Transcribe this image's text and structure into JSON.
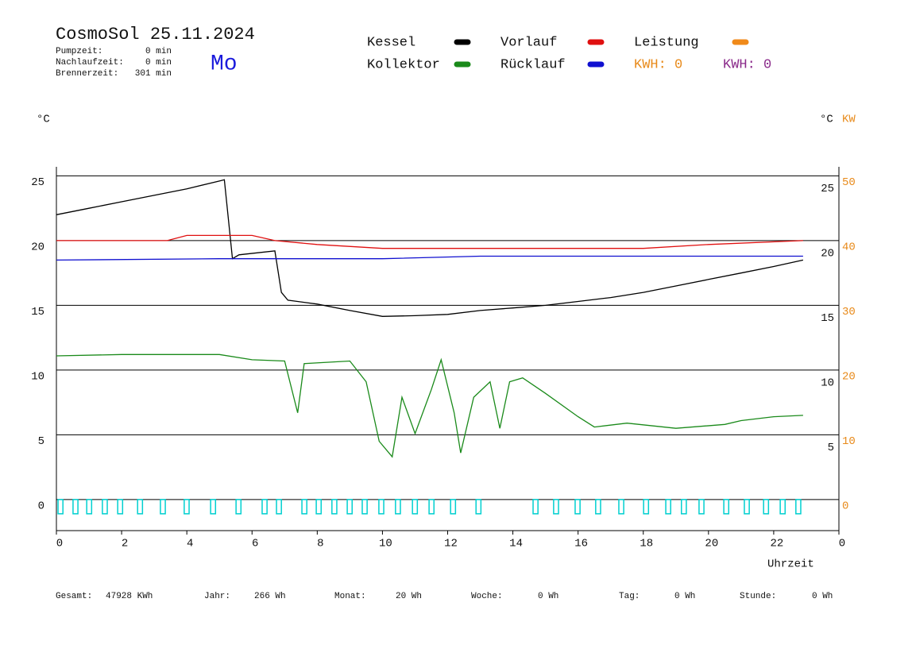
{
  "chart_data": {
    "type": "line",
    "title": "CosmoSol 25.11.2024",
    "weekday": "Mo",
    "stats": [
      {
        "label": "Pumpzeit:",
        "value": "0 min"
      },
      {
        "label": "Nachlaufzeit:",
        "value": "0 min"
      },
      {
        "label": "Brennerzeit:",
        "value": "301 min"
      }
    ],
    "y_label": "°C",
    "y_right_label": "°C",
    "y2_label": "KW",
    "x_label": "Uhrzeit",
    "xlim": [
      0,
      24
    ],
    "xticks": [
      0,
      2,
      4,
      6,
      8,
      10,
      12,
      14,
      16,
      18,
      20,
      22,
      {
        "value": 24,
        "label": "0"
      }
    ],
    "ylim": [
      -2.4,
      25.7
    ],
    "yticks": [
      0,
      5,
      10,
      15,
      20,
      25
    ],
    "y_right_ticks": [
      5,
      10,
      15,
      20,
      25
    ],
    "y2lim": [
      -4.8,
      51.4
    ],
    "y2ticks": [
      0,
      10,
      20,
      30,
      40,
      50
    ],
    "y2_color": "#e88a1a",
    "grid": true,
    "series": [
      {
        "name": "Kessel",
        "color": "#000000",
        "x": [
          0,
          1,
          2,
          3,
          4,
          5,
          5.15,
          5.4,
          5.6,
          6.7,
          6.9,
          7.1,
          8,
          9,
          10,
          11,
          12,
          13,
          14,
          15,
          16,
          17,
          18,
          19,
          20,
          21,
          22,
          22.9
        ],
        "values": [
          22.0,
          22.5,
          23.0,
          23.5,
          24.0,
          24.6,
          24.7,
          18.6,
          18.9,
          19.2,
          16.0,
          15.4,
          15.1,
          14.6,
          14.15,
          14.2,
          14.3,
          14.6,
          14.8,
          15.0,
          15.3,
          15.6,
          16.0,
          16.5,
          17.0,
          17.5,
          18.0,
          18.5
        ]
      },
      {
        "name": "Vorlauf",
        "color": "#e01010",
        "x": [
          0,
          3.4,
          4,
          6,
          6.7,
          8,
          10,
          14,
          18,
          20,
          22.9
        ],
        "values": [
          20.0,
          20.0,
          20.4,
          20.4,
          20.0,
          19.7,
          19.4,
          19.4,
          19.4,
          19.7,
          20.0
        ]
      },
      {
        "name": "Leistung",
        "color": "#f08a1a",
        "axis": "y2",
        "x": [
          0,
          22.9
        ],
        "values": [
          null,
          null
        ]
      },
      {
        "name": "Kollektor",
        "color": "#1a8a1a",
        "x": [
          0,
          2,
          5,
          6,
          7,
          7.4,
          7.6,
          9,
          9.5,
          9.9,
          10.3,
          10.6,
          11,
          11.5,
          11.8,
          12.2,
          12.4,
          12.8,
          13.3,
          13.6,
          13.9,
          14.3,
          15,
          16,
          16.5,
          17.5,
          19,
          20.5,
          21,
          22,
          22.9
        ],
        "values": [
          11.1,
          11.2,
          11.2,
          10.8,
          10.7,
          6.7,
          10.5,
          10.7,
          9.1,
          4.5,
          3.3,
          7.9,
          5.1,
          8.5,
          10.8,
          6.7,
          3.6,
          7.9,
          9.1,
          5.5,
          9.1,
          9.4,
          8.2,
          6.4,
          5.6,
          5.9,
          5.5,
          5.8,
          6.1,
          6.4,
          6.5
        ]
      },
      {
        "name": "Rücklauf",
        "color": "#1010d0",
        "x": [
          0,
          5,
          10,
          13,
          22.9
        ],
        "values": [
          18.5,
          18.6,
          18.6,
          18.8,
          18.8
        ]
      }
    ],
    "kwh": [
      {
        "label": "KWH: 0",
        "color": "#e88a1a"
      },
      {
        "label": "KWH: 0",
        "color": "#8a2a8a"
      }
    ],
    "pulses": {
      "color": "#00d0d0",
      "low": -1.1,
      "high": 0,
      "width": 0.15,
      "starts": [
        0.05,
        0.51,
        0.93,
        1.41,
        1.88,
        2.49,
        3.19,
        3.92,
        4.73,
        5.51,
        6.31,
        6.75,
        7.53,
        7.97,
        8.45,
        8.92,
        9.38,
        9.89,
        10.4,
        10.92,
        11.43,
        12.09,
        12.87,
        14.62,
        15.25,
        15.91,
        16.54,
        17.25,
        18.01,
        18.69,
        19.17,
        19.71,
        20.47,
        21.1,
        21.69,
        22.2,
        22.68
      ]
    },
    "footer": [
      {
        "label": "Gesamt:",
        "value": "47928 KWh"
      },
      {
        "label": "Jahr:",
        "value": "266 Wh"
      },
      {
        "label": "Monat:",
        "value": "20 Wh"
      },
      {
        "label": "Woche:",
        "value": "0 Wh"
      },
      {
        "label": "Tag:",
        "value": "0 Wh"
      },
      {
        "label": "Stunde:",
        "value": "0 Wh"
      }
    ]
  }
}
